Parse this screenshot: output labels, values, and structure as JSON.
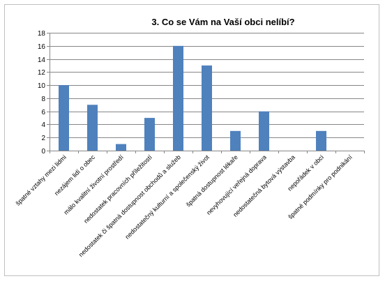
{
  "chart_data": {
    "type": "bar",
    "title": "3. Co  se Vám na Vaší obci nelíbí?",
    "xlabel": "",
    "ylabel": "",
    "ylim": [
      0,
      18
    ],
    "yticks": [
      0,
      2,
      4,
      6,
      8,
      10,
      12,
      14,
      16,
      18
    ],
    "grid": true,
    "legend": "none",
    "bar_color": "#4f81bd",
    "categories": [
      "špatné vztahy mezi lidmi",
      "nezájem lidí o obec",
      "málo kvalitní životní prostředí",
      "nedostatek pracovních příležitostí",
      "nedostatek či špatná dostupnost obchodů a služeb",
      "nedostatečný kulturní a společenský život",
      "špatná dostupnost lékaře",
      "nevyhovující veřejná doprava",
      "nedostatečná bytová výstavba",
      "nepořádek v obci",
      "špatné podmínky pro podnikání"
    ],
    "values": [
      10,
      7,
      1,
      5,
      16,
      13,
      3,
      6,
      0,
      3,
      0
    ]
  }
}
